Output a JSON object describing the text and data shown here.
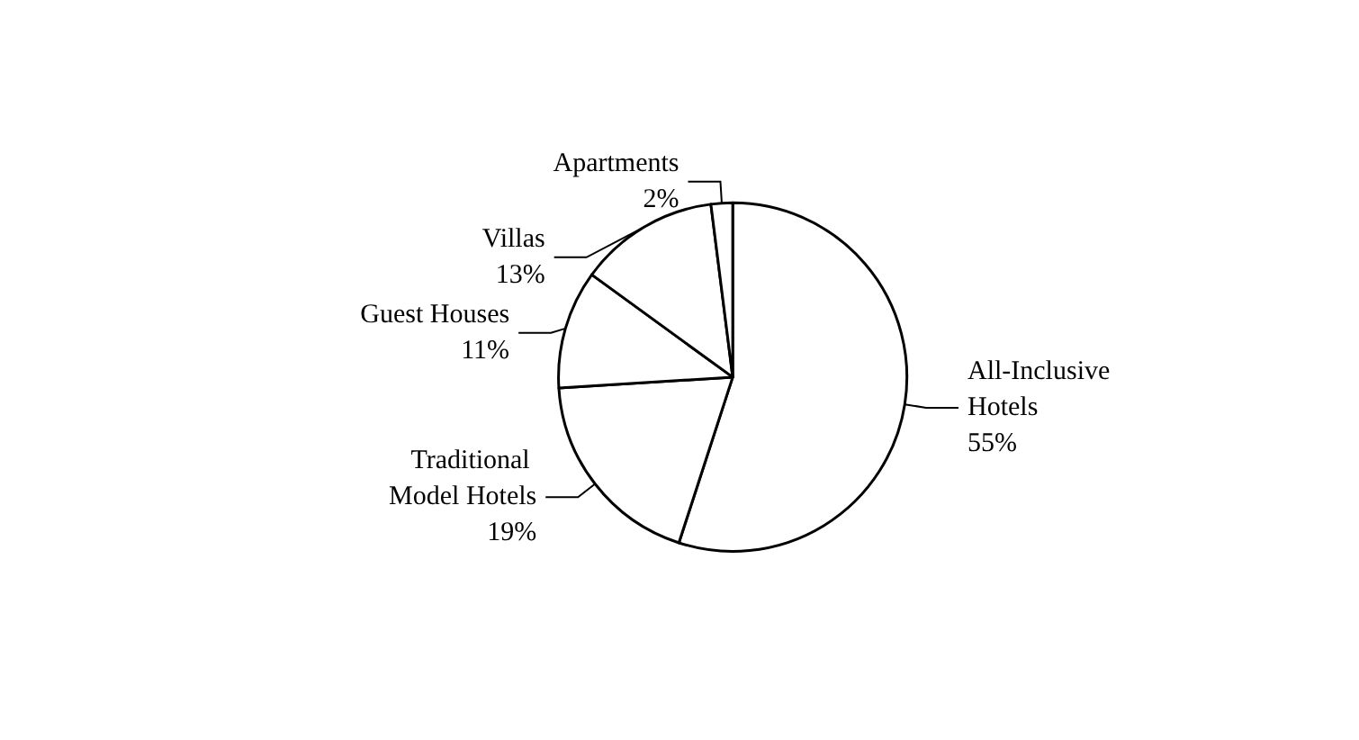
{
  "chart_data": {
    "type": "pie",
    "categories": [
      "All-Inclusive Hotels",
      "Traditional Model Hotels",
      "Guest Houses",
      "Villas",
      "Apartments"
    ],
    "values": [
      55,
      19,
      11,
      13,
      2
    ],
    "value_labels": [
      "55%",
      "19%",
      "11%",
      "13%",
      "2%"
    ],
    "colors": [
      "#ffffff",
      "#ffffff",
      "#ffffff",
      "#ffffff",
      "#ffffff"
    ],
    "legend": false
  }
}
